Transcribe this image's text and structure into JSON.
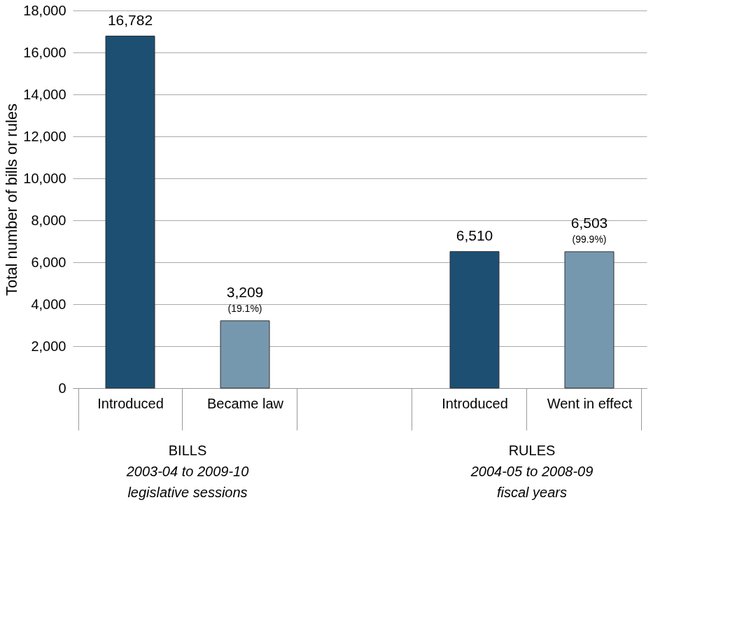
{
  "chart_data": {
    "type": "bar",
    "ylabel": "Total number of bills or rules",
    "categories": [
      "Introduced",
      "Became law",
      null,
      "Introduced",
      "Went in effect"
    ],
    "values": [
      16782,
      3209,
      null,
      6510,
      6503
    ],
    "colors": [
      "#1d4f73",
      "#7698ae",
      "#7698ae",
      "#1d4f73",
      "#7698ae"
    ],
    "value_labels": [
      "16,782",
      "3,209\n(19.1%)",
      null,
      "6,510",
      "6,503\n(99.9%)"
    ],
    "ylim": [
      0,
      18000
    ],
    "yticks": [
      0,
      {
        "value": 2000,
        "label": "2,000"
      },
      {
        "value": 4000,
        "label": "4,000"
      },
      {
        "value": 6000,
        "label": "6,000"
      },
      {
        "value": 8000,
        "label": "8,000"
      },
      {
        "value": 10000,
        "label": "10,000"
      },
      {
        "value": 12000,
        "label": "12,000"
      },
      {
        "value": 14000,
        "label": "14,000"
      },
      {
        "value": 16000,
        "label": "16,000"
      },
      {
        "value": 18000,
        "label": "18,000"
      }
    ],
    "grid": "y",
    "annotations": [
      "BILLS\n2003-04 to 2009-10\nlegislative sessions",
      "RULES\n2004-05 to 2008-09\nfiscal years"
    ]
  }
}
